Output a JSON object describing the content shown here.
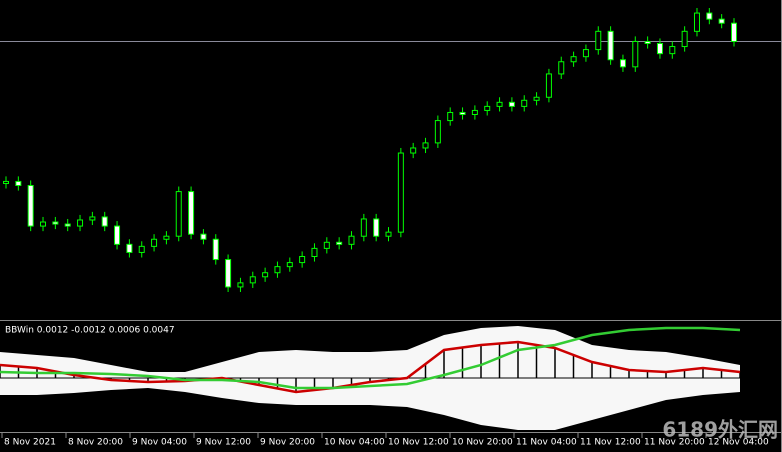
{
  "chart_data": [
    {
      "type": "candlestick",
      "open": [
        140,
        142,
        138,
        98,
        102,
        100,
        98,
        104,
        107,
        98,
        80,
        72,
        78,
        85,
        88,
        132,
        90,
        85,
        65,
        38,
        42,
        48,
        52,
        58,
        62,
        68,
        76,
        82,
        80,
        88,
        105,
        88,
        92,
        170,
        175,
        180,
        202,
        210,
        208,
        212,
        216,
        220,
        216,
        222,
        225,
        248,
        260,
        265,
        272,
        290,
        262,
        255,
        280,
        278,
        268,
        275,
        290,
        308,
        302,
        298
      ],
      "high": [
        147,
        147,
        143,
        107,
        107,
        105,
        109,
        112,
        112,
        103,
        85,
        83,
        90,
        93,
        137,
        137,
        95,
        90,
        70,
        47,
        53,
        57,
        63,
        67,
        73,
        81,
        87,
        87,
        93,
        110,
        110,
        97,
        175,
        180,
        185,
        207,
        215,
        215,
        217,
        221,
        225,
        225,
        227,
        230,
        253,
        265,
        270,
        277,
        295,
        295,
        267,
        285,
        285,
        283,
        280,
        295,
        313,
        313,
        307,
        303
      ],
      "low": [
        135,
        133,
        93,
        93,
        95,
        93,
        93,
        99,
        93,
        75,
        67,
        67,
        73,
        80,
        83,
        85,
        80,
        60,
        33,
        33,
        37,
        43,
        47,
        53,
        57,
        63,
        71,
        75,
        75,
        83,
        83,
        83,
        87,
        165,
        170,
        175,
        197,
        203,
        203,
        207,
        211,
        211,
        211,
        217,
        220,
        243,
        255,
        260,
        267,
        257,
        250,
        250,
        273,
        263,
        263,
        270,
        285,
        297,
        293,
        275
      ],
      "close": [
        142,
        138,
        98,
        102,
        100,
        98,
        104,
        107,
        98,
        80,
        72,
        78,
        85,
        88,
        132,
        90,
        85,
        65,
        38,
        42,
        48,
        52,
        58,
        62,
        68,
        76,
        82,
        80,
        88,
        105,
        88,
        92,
        170,
        175,
        180,
        202,
        210,
        208,
        212,
        216,
        220,
        216,
        222,
        225,
        248,
        260,
        265,
        272,
        290,
        262,
        255,
        280,
        278,
        268,
        275,
        290,
        308,
        302,
        298,
        280
      ],
      "color": "#00ff00"
    },
    {
      "type": "indicator",
      "label": "BBWin 0.0012 -0.0012 0.0006 0.0047",
      "series": [
        {
          "name": "upper",
          "color": "#ffffff",
          "values": [
            0.00104,
            0.00092,
            0.0008,
            0.00052,
            0.00024,
            0.00024,
            0.00064,
            0.00104,
            0.00112,
            0.00104,
            0.00104,
            0.00112,
            0.00172,
            0.002,
            0.00208,
            0.00192,
            0.00132,
            0.00112,
            0.00104,
            0.0008,
            0.00052
          ]
        },
        {
          "name": "lower",
          "color": "#ffffff",
          "values": [
            -0.00068,
            -0.00068,
            -0.0006,
            -0.00048,
            -0.0004,
            -0.00056,
            -0.0008,
            -0.001,
            -0.00108,
            -0.00108,
            -0.00108,
            -0.00116,
            -0.00148,
            -0.00188,
            -0.00208,
            -0.00208,
            -0.00168,
            -0.00128,
            -0.00088,
            -0.00068,
            -0.00056
          ]
        },
        {
          "name": "histogram",
          "color": "#000000",
          "values": [
            0.00052,
            0.00046,
            0.0004,
            0.00026,
            0.00012,
            2e-05,
            -8e-05,
            -0.00012,
            -0.00016,
            -0.00014,
            -0.00012,
            -6e-05,
            0,
            -0.00014,
            -0.00028,
            -0.00042,
            -0.00056,
            -0.00048,
            -0.0004,
            -0.00028,
            -0.00016,
            -8e-05,
            0,
            0.00056,
            0.00112,
            0.00122,
            0.00132,
            0.00138,
            0.00144,
            0.00132,
            0.0012,
            0.00092,
            0.00064,
            0.00048,
            0.00032,
            0.00028,
            0.00024,
            0.00032,
            0.0004,
            0.00032,
            0.00024
          ]
        },
        {
          "name": "red",
          "color": "#cc0000",
          "values": [
            0.00052,
            0.0004,
            0.00012,
            -8e-05,
            -0.00016,
            -0.00012,
            0,
            -0.00028,
            -0.00056,
            -0.0004,
            -0.00016,
            0,
            0.00112,
            0.00132,
            0.00144,
            0.0012,
            0.00064,
            0.00032,
            0.00024,
            0.0004,
            0.00024
          ]
        },
        {
          "name": "green",
          "color": "#33cc33",
          "values": [
            0.00024,
            0.0002,
            0.0002,
            0.00016,
            8e-05,
            -8e-05,
            -8e-05,
            -0.00016,
            -0.0004,
            -0.0004,
            -0.00032,
            -0.00024,
            0.00012,
            0.00052,
            0.00112,
            0.00132,
            0.00172,
            0.00192,
            0.002,
            0.002,
            0.00192
          ]
        }
      ]
    }
  ],
  "time_labels": [
    "8 Nov 2021",
    "8 Nov 20:00",
    "9 Nov 04:00",
    "9 Nov 12:00",
    "9 Nov 20:00",
    "10 Nov 04:00",
    "10 Nov 12:00",
    "10 Nov 20:00",
    "11 Nov 04:00",
    "11 Nov 12:00",
    "11 Nov 20:00",
    "12 Nov 04:00"
  ],
  "watermark": "6189外汇网"
}
